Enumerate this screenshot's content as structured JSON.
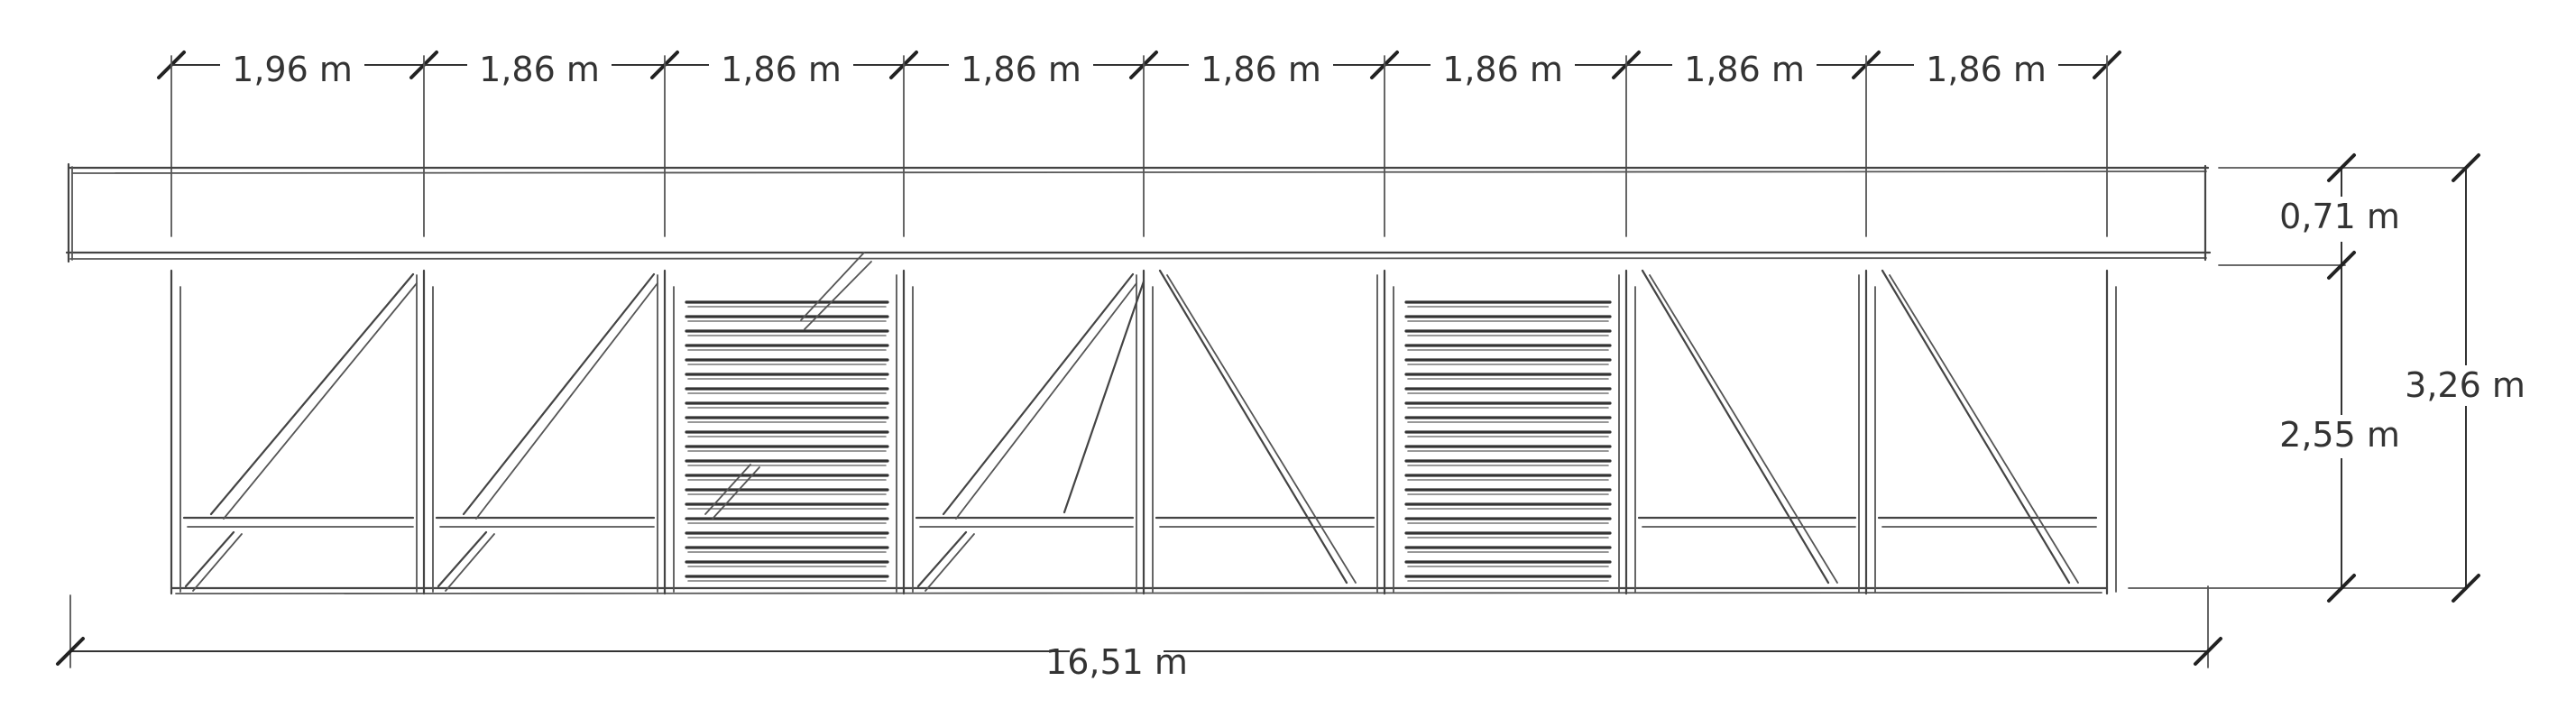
{
  "diagram": {
    "bay_widths": [
      "1,96 m",
      "1,86 m",
      "1,86 m",
      "1,86 m",
      "1,86 m",
      "1,86 m",
      "1,86 m",
      "1,86 m"
    ],
    "total_length": "16,51 m",
    "beam_height": "0,71 m",
    "wall_height": "2,55 m",
    "total_height": "3,26 m"
  }
}
